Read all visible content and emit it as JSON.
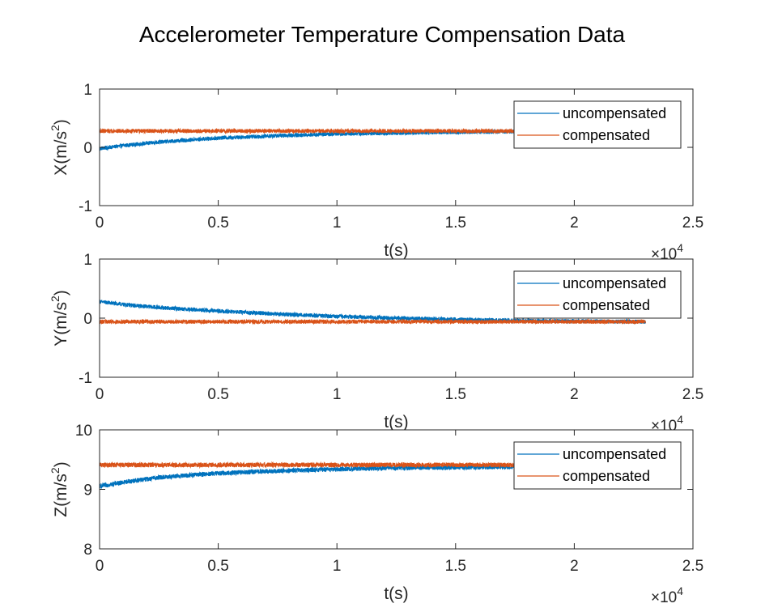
{
  "title": "Accelerometer Temperature Compensation Data",
  "colors": {
    "uncompensated": "#0072BD",
    "compensated": "#D95319",
    "axis": "#262626"
  },
  "chart_data": [
    {
      "type": "line",
      "xlabel": "t(s)",
      "ylabel": "X(m/s²)",
      "ylabel_base": "X(m/s",
      "ylabel_sup": "2",
      "ylabel_end": ")",
      "xlim": [
        0,
        25000
      ],
      "ylim": [
        -1,
        1
      ],
      "xticks": [
        0,
        5000,
        10000,
        15000,
        20000,
        25000
      ],
      "xticklabels": [
        "0",
        "0.5",
        "1",
        "1.5",
        "2",
        "2.5"
      ],
      "yticks": [
        -1,
        0,
        1
      ],
      "yticklabels": [
        "-1",
        "0",
        "1"
      ],
      "x_exponent_base": "×10",
      "x_exponent_power": "4",
      "legend": "top-right",
      "series": [
        {
          "name": "uncompensated",
          "color": "#0072BD",
          "noise": 0.035,
          "x": [
            0,
            1000,
            2500,
            5000,
            7500,
            10000,
            12500,
            15000,
            17500,
            20000,
            23000
          ],
          "values": [
            -0.02,
            0.03,
            0.09,
            0.16,
            0.2,
            0.23,
            0.245,
            0.26,
            0.27,
            0.275,
            0.28
          ]
        },
        {
          "name": "compensated",
          "color": "#D95319",
          "noise": 0.035,
          "x": [
            0,
            5000,
            10000,
            15000,
            20000,
            23000
          ],
          "values": [
            0.28,
            0.28,
            0.28,
            0.28,
            0.28,
            0.28
          ]
        }
      ]
    },
    {
      "type": "line",
      "xlabel": "t(s)",
      "ylabel": "Y(m/s²)",
      "ylabel_base": "Y(m/s",
      "ylabel_sup": "2",
      "ylabel_end": ")",
      "xlim": [
        0,
        25000
      ],
      "ylim": [
        -1,
        1
      ],
      "xticks": [
        0,
        5000,
        10000,
        15000,
        20000,
        25000
      ],
      "xticklabels": [
        "0",
        "0.5",
        "1",
        "1.5",
        "2",
        "2.5"
      ],
      "yticks": [
        -1,
        0,
        1
      ],
      "yticklabels": [
        "-1",
        "0",
        "1"
      ],
      "x_exponent_base": "×10",
      "x_exponent_power": "4",
      "legend": "top-right",
      "series": [
        {
          "name": "uncompensated",
          "color": "#0072BD",
          "noise": 0.035,
          "x": [
            0,
            1000,
            2500,
            5000,
            7500,
            10000,
            12500,
            15000,
            17500,
            20000,
            23000
          ],
          "values": [
            0.28,
            0.23,
            0.18,
            0.12,
            0.07,
            0.03,
            0.0,
            -0.02,
            -0.04,
            -0.05,
            -0.06
          ]
        },
        {
          "name": "compensated",
          "color": "#D95319",
          "noise": 0.035,
          "x": [
            0,
            5000,
            10000,
            15000,
            20000,
            23000
          ],
          "values": [
            -0.06,
            -0.06,
            -0.06,
            -0.06,
            -0.06,
            -0.06
          ]
        }
      ]
    },
    {
      "type": "line",
      "xlabel": "t(s)",
      "ylabel": "Z(m/s²)",
      "ylabel_base": "Z(m/s",
      "ylabel_sup": "2",
      "ylabel_end": ")",
      "xlim": [
        0,
        25000
      ],
      "ylim": [
        8,
        10
      ],
      "xticks": [
        0,
        5000,
        10000,
        15000,
        20000,
        25000
      ],
      "xticklabels": [
        "0",
        "0.5",
        "1",
        "1.5",
        "2",
        "2.5"
      ],
      "yticks": [
        8,
        9,
        10
      ],
      "yticklabels": [
        "8",
        "9",
        "10"
      ],
      "x_exponent_base": "×10",
      "x_exponent_power": "4",
      "legend": "top-right",
      "series": [
        {
          "name": "uncompensated",
          "color": "#0072BD",
          "noise": 0.04,
          "x": [
            0,
            1000,
            2500,
            5000,
            7500,
            10000,
            12500,
            15000,
            17500,
            20000,
            23000
          ],
          "values": [
            9.05,
            9.12,
            9.2,
            9.27,
            9.31,
            9.34,
            9.36,
            9.37,
            9.38,
            9.39,
            9.39
          ]
        },
        {
          "name": "compensated",
          "color": "#D95319",
          "noise": 0.04,
          "x": [
            0,
            5000,
            10000,
            15000,
            20000,
            23000
          ],
          "values": [
            9.41,
            9.41,
            9.41,
            9.41,
            9.41,
            9.41
          ]
        }
      ]
    }
  ]
}
